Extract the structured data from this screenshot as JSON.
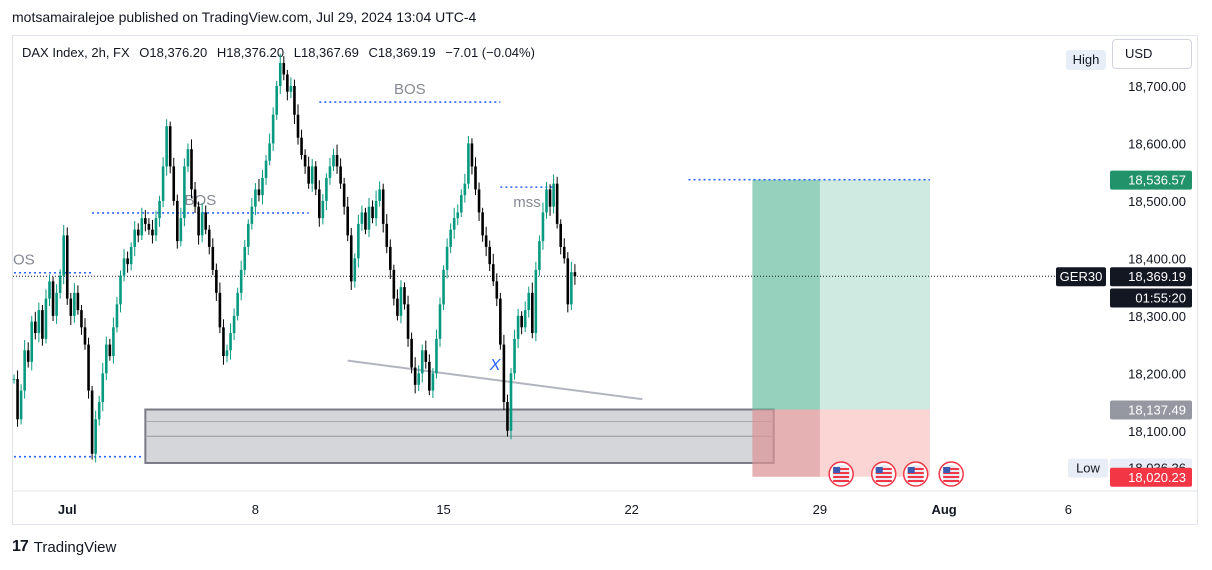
{
  "header": {
    "published_line": "motsamairalejoe published on TradingView.com, Jul 29, 2024 13:04 UTC-4"
  },
  "legend": {
    "symbol": "DAX Index, 2h, FX",
    "open": "O18,376.20",
    "high": "H18,376.20",
    "low": "L18,367.69",
    "close": "C18,369.19",
    "change": "−7.01 (−0.04%)"
  },
  "controls": {
    "high_label": "High",
    "currency": "USD"
  },
  "footer": {
    "brand": "TradingView",
    "brand_mark": "17"
  },
  "chart_data": {
    "type": "candlestick",
    "symbol": "DAX Index",
    "interval": "2h",
    "ylim": [
      17990,
      18780
    ],
    "y_ticks": [
      {
        "value": 18100,
        "label": "18,100.00"
      },
      {
        "value": 18200,
        "label": "18,200.00"
      },
      {
        "value": 18300,
        "label": "18,300.00"
      },
      {
        "value": 18400,
        "label": "18,400.00"
      },
      {
        "value": 18500,
        "label": "18,500.00"
      },
      {
        "value": 18600,
        "label": "18,600.00"
      },
      {
        "value": 18700,
        "label": "18,700.00"
      }
    ],
    "x_ticks": [
      {
        "label": "Jul",
        "bar": 15
      },
      {
        "label": "8",
        "bar": 68
      },
      {
        "label": "15",
        "bar": 121
      },
      {
        "label": "22",
        "bar": 174
      },
      {
        "label": "29",
        "bar": 227
      },
      {
        "label": "Aug",
        "bar": 262
      },
      {
        "label": "6",
        "bar": 297
      }
    ],
    "candles": [
      {
        "c": 18190
      },
      {
        "c": 18120
      },
      {
        "c": 18170
      },
      {
        "c": 18240
      },
      {
        "c": 18220
      },
      {
        "c": 18290
      },
      {
        "c": 18270
      },
      {
        "c": 18310
      },
      {
        "c": 18260
      },
      {
        "c": 18330
      },
      {
        "c": 18360
      },
      {
        "c": 18300
      },
      {
        "c": 18340
      },
      {
        "c": 18370
      },
      {
        "c": 18440
      },
      {
        "c": 18330
      },
      {
        "c": 18300
      },
      {
        "c": 18340
      },
      {
        "c": 18310
      },
      {
        "c": 18280
      },
      {
        "c": 18250
      },
      {
        "c": 18170
      },
      {
        "c": 18060
      },
      {
        "c": 18120
      },
      {
        "c": 18150
      },
      {
        "c": 18200
      },
      {
        "c": 18250
      },
      {
        "c": 18230
      },
      {
        "c": 18280
      },
      {
        "c": 18320
      },
      {
        "c": 18370
      },
      {
        "c": 18400
      },
      {
        "c": 18390
      },
      {
        "c": 18420
      },
      {
        "c": 18450
      },
      {
        "c": 18440
      },
      {
        "c": 18470
      },
      {
        "c": 18460
      },
      {
        "c": 18450
      },
      {
        "c": 18440
      },
      {
        "c": 18470
      },
      {
        "c": 18500
      },
      {
        "c": 18560
      },
      {
        "c": 18630
      },
      {
        "c": 18560
      },
      {
        "c": 18500
      },
      {
        "c": 18430
      },
      {
        "c": 18470
      },
      {
        "c": 18560
      },
      {
        "c": 18590
      },
      {
        "c": 18520
      },
      {
        "c": 18490
      },
      {
        "c": 18440
      },
      {
        "c": 18480
      },
      {
        "c": 18450
      },
      {
        "c": 18420
      },
      {
        "c": 18380
      },
      {
        "c": 18340
      },
      {
        "c": 18280
      },
      {
        "c": 18230
      },
      {
        "c": 18240
      },
      {
        "c": 18270
      },
      {
        "c": 18300
      },
      {
        "c": 18340
      },
      {
        "c": 18380
      },
      {
        "c": 18420
      },
      {
        "c": 18460
      },
      {
        "c": 18490
      },
      {
        "c": 18520
      },
      {
        "c": 18510
      },
      {
        "c": 18540
      },
      {
        "c": 18570
      },
      {
        "c": 18600
      },
      {
        "c": 18650
      },
      {
        "c": 18700
      },
      {
        "c": 18740
      },
      {
        "c": 18720
      },
      {
        "c": 18690
      },
      {
        "c": 18700
      },
      {
        "c": 18650
      },
      {
        "c": 18610
      },
      {
        "c": 18580
      },
      {
        "c": 18560
      },
      {
        "c": 18530
      },
      {
        "c": 18560
      },
      {
        "c": 18520
      },
      {
        "c": 18470
      },
      {
        "c": 18500
      },
      {
        "c": 18540
      },
      {
        "c": 18560
      },
      {
        "c": 18580
      },
      {
        "c": 18560
      },
      {
        "c": 18530
      },
      {
        "c": 18490
      },
      {
        "c": 18440
      },
      {
        "c": 18360
      },
      {
        "c": 18400
      },
      {
        "c": 18460
      },
      {
        "c": 18480
      },
      {
        "c": 18450
      },
      {
        "c": 18490
      },
      {
        "c": 18470
      },
      {
        "c": 18500
      },
      {
        "c": 18520
      },
      {
        "c": 18460
      },
      {
        "c": 18420
      },
      {
        "c": 18380
      },
      {
        "c": 18330
      },
      {
        "c": 18300
      },
      {
        "c": 18350
      },
      {
        "c": 18320
      },
      {
        "c": 18260
      },
      {
        "c": 18210
      },
      {
        "c": 18180
      },
      {
        "c": 18200
      },
      {
        "c": 18240
      },
      {
        "c": 18220
      },
      {
        "c": 18170
      },
      {
        "c": 18200
      },
      {
        "c": 18260
      },
      {
        "c": 18320
      },
      {
        "c": 18380
      },
      {
        "c": 18420
      },
      {
        "c": 18450
      },
      {
        "c": 18470
      },
      {
        "c": 18480
      },
      {
        "c": 18510
      },
      {
        "c": 18530
      },
      {
        "c": 18600
      },
      {
        "c": 18560
      },
      {
        "c": 18520
      },
      {
        "c": 18480
      },
      {
        "c": 18440
      },
      {
        "c": 18420
      },
      {
        "c": 18390
      },
      {
        "c": 18360
      },
      {
        "c": 18330
      },
      {
        "c": 18250
      },
      {
        "c": 18150
      },
      {
        "c": 18100
      },
      {
        "c": 18200
      },
      {
        "c": 18260
      },
      {
        "c": 18300
      },
      {
        "c": 18280
      },
      {
        "c": 18310
      },
      {
        "c": 18340
      },
      {
        "c": 18270
      },
      {
        "c": 18380
      },
      {
        "c": 18430
      },
      {
        "c": 18480
      },
      {
        "c": 18520
      },
      {
        "c": 18490
      },
      {
        "c": 18530
      },
      {
        "c": 18460
      },
      {
        "c": 18420
      },
      {
        "c": 18400
      },
      {
        "c": 18320
      },
      {
        "c": 18376
      },
      {
        "c": 18369
      }
    ],
    "annotations": [
      {
        "type": "hline_dotted",
        "label": "BOS",
        "price": 18672,
        "x_from_bar": 86,
        "x_to_bar": 137
      },
      {
        "type": "hline_dotted",
        "label": "BOS",
        "price": 18479,
        "x_from_bar": 22,
        "x_to_bar": 83
      },
      {
        "type": "hline_dotted",
        "label": "OS",
        "price": 18375,
        "x_from_bar": 0,
        "x_to_bar": 22
      },
      {
        "type": "hline_dotted",
        "label": "mss",
        "price": 18524,
        "x_from_bar": 137,
        "x_to_bar": 152
      },
      {
        "type": "hline_dotted",
        "label": "",
        "price": 18537,
        "x_from_bar": 190,
        "x_to_bar": 258
      },
      {
        "type": "hline_dotted",
        "label": "",
        "price": 18055,
        "x_from_bar": 0,
        "x_to_bar": 36
      },
      {
        "type": "trendline",
        "label": "X",
        "from": {
          "bar": 94,
          "price": 18222
        },
        "to": {
          "bar": 177,
          "price": 18155
        }
      }
    ],
    "zones": [
      {
        "type": "rectangle",
        "color": "#9598a1",
        "from_bar": 37,
        "to_bar": 214,
        "price_top": 18137,
        "price_bottom": 18044
      },
      {
        "type": "position_profit",
        "color": "#4fb393",
        "from_bar": 208,
        "to_bar": 258,
        "price_top": 18537,
        "price_bottom": 18137
      },
      {
        "type": "position_loss",
        "color": "#f7a9a9",
        "from_bar": 208,
        "to_bar": 258,
        "price_top": 18137,
        "price_bottom": 18020
      }
    ],
    "price_labels": [
      {
        "text": "18,536.57",
        "price": 18537,
        "bg": "#22926a",
        "fg": "#ffffff"
      },
      {
        "text": "18,369.19",
        "price": 18369,
        "bg": "#131722",
        "fg": "#ffffff"
      },
      {
        "text": "01:55:20",
        "price": 18332,
        "bg": "#131722",
        "fg": "#ffffff"
      },
      {
        "text": "18,137.49",
        "price": 18137,
        "bg": "#9598a1",
        "fg": "#ffffff"
      },
      {
        "text": "18,036.36",
        "price": 18036,
        "bg": "#e9eef6",
        "fg": "#131722"
      },
      {
        "text": "18,020.23",
        "price": 18020,
        "bg": "#f23645",
        "fg": "#ffffff"
      }
    ],
    "scale_labels": {
      "low": "Low",
      "symbol_tag": "GER30"
    },
    "event_flags": [
      {
        "bar": 233,
        "icon": "us-flag-icon"
      },
      {
        "bar": 245,
        "icon": "us-flag-icon"
      },
      {
        "bar": 254,
        "icon": "us-flag-icon"
      },
      {
        "bar": 264,
        "icon": "us-flag-icon"
      }
    ],
    "colors": {
      "up": "#089981",
      "down": "#000000",
      "dotted_line": "#2962ff",
      "trendline": "#b2b5be",
      "current_price_line": "#131722"
    }
  }
}
